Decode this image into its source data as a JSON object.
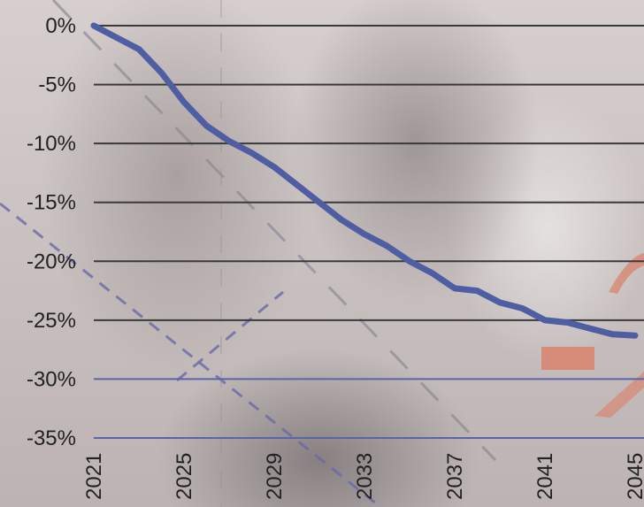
{
  "chart_data": {
    "type": "line",
    "title": "",
    "xlabel": "",
    "ylabel": "",
    "x": [
      2021,
      2022,
      2023,
      2024,
      2025,
      2026,
      2027,
      2028,
      2029,
      2030,
      2031,
      2032,
      2033,
      2034,
      2035,
      2036,
      2037,
      2038,
      2039,
      2040,
      2041,
      2042,
      2043,
      2044,
      2045
    ],
    "series": [
      {
        "values": [
          0,
          -1,
          -2,
          -4,
          -6.5,
          -8.5,
          -9.8,
          -10.8,
          -12,
          -13.5,
          -15,
          -16.5,
          -17.7,
          -18.7,
          -20,
          -21,
          -22.3,
          -22.5,
          -23.5,
          -24,
          -25,
          -25.2,
          -25.7,
          -26.2,
          -26.3
        ],
        "color": "#4f5ea2"
      }
    ],
    "xlim": [
      2021,
      2045
    ],
    "ylim": [
      -35,
      0
    ],
    "x_tick_labels": [
      "2021",
      "2025",
      "2029",
      "2033",
      "2037",
      "2041",
      "2045"
    ],
    "y_tick_labels": [
      "0%",
      "-5%",
      "-10%",
      "-15%",
      "-20%",
      "-25%",
      "-30%",
      "-35%"
    ],
    "grid": true,
    "grid_color": "#3a3a3a",
    "grid_color_lower": "#5a64a8",
    "line_color": "#4f5ea2",
    "background_dashed_line_colors": [
      "#8a8a96",
      "#6a6aa8"
    ],
    "accent_color": "#d9826d"
  }
}
